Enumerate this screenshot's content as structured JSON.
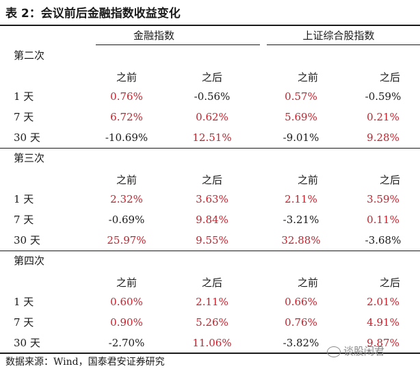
{
  "title": "表 2：会议前后金融指数收益变化",
  "headers": {
    "col_group_1": "金融指数",
    "col_group_2": "上证综合股指数"
  },
  "sub_headers": [
    "之前",
    "之后",
    "之前",
    "之后"
  ],
  "sections": [
    {
      "label": "第二次",
      "rows": [
        {
          "label": "1 天",
          "values": [
            "0.76%",
            "-0.56%",
            "0.57%",
            "-0.59%"
          ],
          "red": [
            true,
            false,
            true,
            false
          ]
        },
        {
          "label": "7 天",
          "values": [
            "6.72%",
            "0.62%",
            "5.69%",
            "0.21%"
          ],
          "red": [
            true,
            true,
            true,
            true
          ]
        },
        {
          "label": "30 天",
          "values": [
            "-10.69%",
            "12.51%",
            "-9.01%",
            "9.28%"
          ],
          "red": [
            false,
            true,
            false,
            true
          ]
        }
      ]
    },
    {
      "label": "第三次",
      "rows": [
        {
          "label": "1 天",
          "values": [
            "2.32%",
            "3.63%",
            "2.11%",
            "3.59%"
          ],
          "red": [
            true,
            true,
            true,
            true
          ]
        },
        {
          "label": "7 天",
          "values": [
            "-0.69%",
            "9.84%",
            "-3.21%",
            "0.11%"
          ],
          "red": [
            false,
            true,
            false,
            true
          ]
        },
        {
          "label": "30 天",
          "values": [
            "25.97%",
            "9.55%",
            "32.88%",
            "-3.68%"
          ],
          "red": [
            true,
            true,
            true,
            false
          ]
        }
      ]
    },
    {
      "label": "第四次",
      "rows": [
        {
          "label": "1 天",
          "values": [
            "0.60%",
            "2.11%",
            "0.66%",
            "2.01%"
          ],
          "red": [
            true,
            true,
            true,
            true
          ]
        },
        {
          "label": "7 天",
          "values": [
            "0.90%",
            "5.26%",
            "0.76%",
            "4.91%"
          ],
          "red": [
            true,
            true,
            true,
            true
          ]
        },
        {
          "label": "30 天",
          "values": [
            "-2.70%",
            "11.06%",
            "-3.82%",
            "9.87%"
          ],
          "red": [
            false,
            true,
            false,
            true
          ]
        }
      ]
    }
  ],
  "source": "数据来源：Wind，国泰君安证券研究",
  "watermark": "谈股闲君",
  "colors": {
    "positive": "#c4232e",
    "text": "#1a1a1a"
  }
}
